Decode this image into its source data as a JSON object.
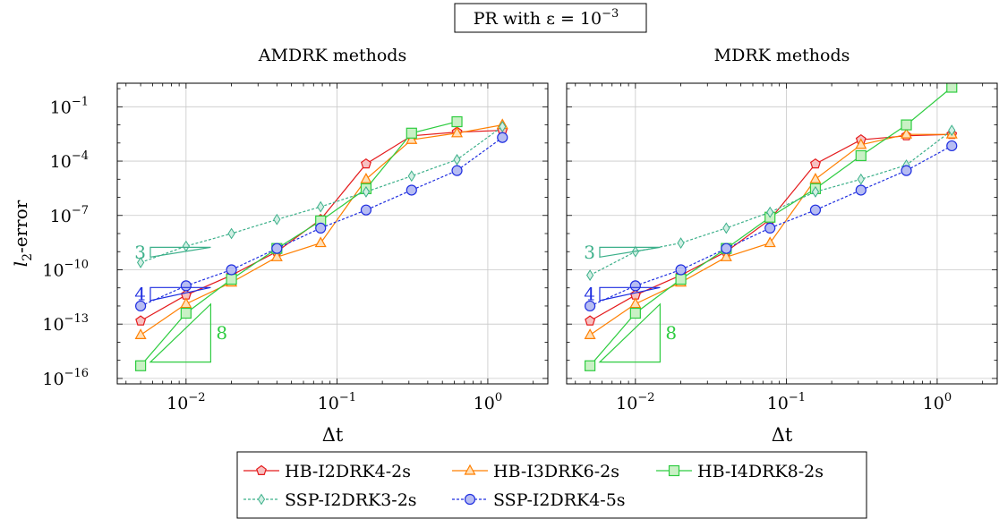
{
  "figure": {
    "title": "PR with ε = 10",
    "title_exp": "−3"
  },
  "legend": {
    "items": [
      {
        "label": "HB-I2DRK4-2s",
        "color": "#e41a1c",
        "marker": "pentagon",
        "dash": "solid"
      },
      {
        "label": "HB-I3DRK6-2s",
        "color": "#ff7f00",
        "marker": "triangle",
        "dash": "solid"
      },
      {
        "label": "HB-I4DRK8-2s",
        "color": "#2ecc40",
        "marker": "square",
        "dash": "solid"
      },
      {
        "label": "SSP-I2DRK3-2s",
        "color": "#3cb08a",
        "marker": "diamond",
        "dash": "dashed"
      },
      {
        "label": "SSP-I2DRK4-5s",
        "color": "#1f2ee0",
        "marker": "circle",
        "dash": "dashed"
      }
    ]
  },
  "chart_data": [
    {
      "type": "line",
      "title": "AMDRK methods",
      "xlabel": "Δt",
      "ylabel": "l2-error",
      "xscale": "log",
      "yscale": "log",
      "xlim": [
        0.0035,
        2.5
      ],
      "ylim": [
        5e-17,
        2.0
      ],
      "xticks": [
        {
          "value": 0.01,
          "label": "10",
          "exp": "−2"
        },
        {
          "value": 0.1,
          "label": "10",
          "exp": "−1"
        },
        {
          "value": 1,
          "label": "10",
          "exp": "0"
        }
      ],
      "yticks": [
        {
          "value": 1e-16,
          "label": "10",
          "exp": "−16"
        },
        {
          "value": 1e-13,
          "label": "10",
          "exp": "−13"
        },
        {
          "value": 1e-10,
          "label": "10",
          "exp": "−10"
        },
        {
          "value": 1e-07,
          "label": "10",
          "exp": "−7"
        },
        {
          "value": 0.0001,
          "label": "10",
          "exp": "−4"
        },
        {
          "value": 0.1,
          "label": "10",
          "exp": "−1"
        }
      ],
      "grid": true,
      "slopes": [
        {
          "label": "3",
          "color": "#3cb08a",
          "x": 0.0058,
          "y": 5e-10,
          "run": 0.4,
          "rise": 1
        },
        {
          "label": "4",
          "color": "#1f2ee0",
          "x": 0.0058,
          "y": 2e-12,
          "run": 0.4,
          "rise": 1
        },
        {
          "label": "8",
          "color": "#2ecc40",
          "x": 0.0058,
          "y": 8e-16,
          "run": 0.4,
          "rise": 1,
          "below": true
        }
      ],
      "series": [
        {
          "name": "HB-I2DRK4-2s",
          "x": [
            0.005,
            0.01,
            0.02,
            0.04,
            0.078,
            0.156,
            0.3125,
            0.625,
            1.25
          ],
          "y": [
            1.5e-13,
            4e-12,
            5e-11,
            1e-09,
            6e-08,
            7e-05,
            0.0025,
            0.004,
            0.005
          ]
        },
        {
          "name": "HB-I3DRK6-2s",
          "x": [
            0.005,
            0.01,
            0.02,
            0.04,
            0.078,
            0.156,
            0.3125,
            0.625,
            1.25
          ],
          "y": [
            2.5e-14,
            1.3e-12,
            2e-11,
            5e-10,
            3e-09,
            1e-05,
            0.0015,
            0.0035,
            0.01
          ]
        },
        {
          "name": "HB-I4DRK8-2s",
          "x": [
            0.005,
            0.01,
            0.02,
            0.04,
            0.078,
            0.156,
            0.3125,
            0.625
          ],
          "y": [
            5e-16,
            4e-13,
            3e-11,
            1.5e-09,
            5e-08,
            3e-06,
            0.0035,
            0.015
          ]
        },
        {
          "name": "SSP-I2DRK3-2s",
          "x": [
            0.005,
            0.01,
            0.02,
            0.04,
            0.078,
            0.156,
            0.3125,
            0.625,
            1.25
          ],
          "y": [
            2.5e-10,
            2e-09,
            1e-08,
            6e-08,
            3e-07,
            2e-06,
            1.5e-05,
            0.00012,
            0.008
          ]
        },
        {
          "name": "SSP-I2DRK4-5s",
          "x": [
            0.005,
            0.01,
            0.02,
            0.04,
            0.078,
            0.156,
            0.3125,
            0.625,
            1.25
          ],
          "y": [
            1e-12,
            1.3e-11,
            1e-10,
            1.5e-09,
            2e-08,
            2e-07,
            2.5e-06,
            3e-05,
            0.002
          ]
        }
      ]
    },
    {
      "type": "line",
      "title": "MDRK methods",
      "xlabel": "Δt",
      "ylabel": "",
      "xscale": "log",
      "yscale": "log",
      "xlim": [
        0.0035,
        2.5
      ],
      "ylim": [
        5e-17,
        2.0
      ],
      "xticks": [
        {
          "value": 0.01,
          "label": "10",
          "exp": "−2"
        },
        {
          "value": 0.1,
          "label": "10",
          "exp": "−1"
        },
        {
          "value": 1,
          "label": "10",
          "exp": "0"
        }
      ],
      "yticks": [],
      "grid": true,
      "slopes": [
        {
          "label": "3",
          "color": "#3cb08a",
          "x": 0.0058,
          "y": 5e-10,
          "run": 0.4,
          "rise": 1
        },
        {
          "label": "4",
          "color": "#1f2ee0",
          "x": 0.0058,
          "y": 2e-12,
          "run": 0.4,
          "rise": 1
        },
        {
          "label": "8",
          "color": "#2ecc40",
          "x": 0.0058,
          "y": 8e-16,
          "run": 0.4,
          "rise": 1,
          "below": true
        }
      ],
      "series": [
        {
          "name": "HB-I2DRK4-2s",
          "x": [
            0.005,
            0.01,
            0.02,
            0.04,
            0.078,
            0.156,
            0.3125,
            0.625,
            1.25
          ],
          "y": [
            1.5e-13,
            4e-12,
            5e-11,
            1e-09,
            6e-08,
            7e-05,
            0.0015,
            0.0025,
            0.003
          ]
        },
        {
          "name": "HB-I3DRK6-2s",
          "x": [
            0.005,
            0.01,
            0.02,
            0.04,
            0.078,
            0.156,
            0.3125,
            0.625,
            1.25
          ],
          "y": [
            2.5e-14,
            1.3e-12,
            2e-11,
            5e-10,
            3e-09,
            1e-05,
            0.0008,
            0.003,
            0.003
          ]
        },
        {
          "name": "HB-I4DRK8-2s",
          "x": [
            0.005,
            0.01,
            0.02,
            0.04,
            0.078,
            0.156,
            0.3125,
            0.625,
            1.25
          ],
          "y": [
            5e-16,
            4e-13,
            3e-11,
            1.5e-09,
            8e-08,
            3e-06,
            0.0002,
            0.01,
            1.2
          ]
        },
        {
          "name": "SSP-I2DRK3-2s",
          "x": [
            0.005,
            0.01,
            0.02,
            0.04,
            0.078,
            0.156,
            0.3125,
            0.625,
            1.25
          ],
          "y": [
            5e-11,
            1e-09,
            3e-09,
            2e-08,
            1.5e-07,
            2e-06,
            1e-05,
            6e-05,
            0.005
          ]
        },
        {
          "name": "SSP-I2DRK4-5s",
          "x": [
            0.005,
            0.01,
            0.02,
            0.04,
            0.078,
            0.156,
            0.3125,
            0.625,
            1.25
          ],
          "y": [
            1e-12,
            1.3e-11,
            1e-10,
            1.5e-09,
            2e-08,
            2e-07,
            2.5e-06,
            3e-05,
            0.0007
          ]
        }
      ]
    }
  ]
}
